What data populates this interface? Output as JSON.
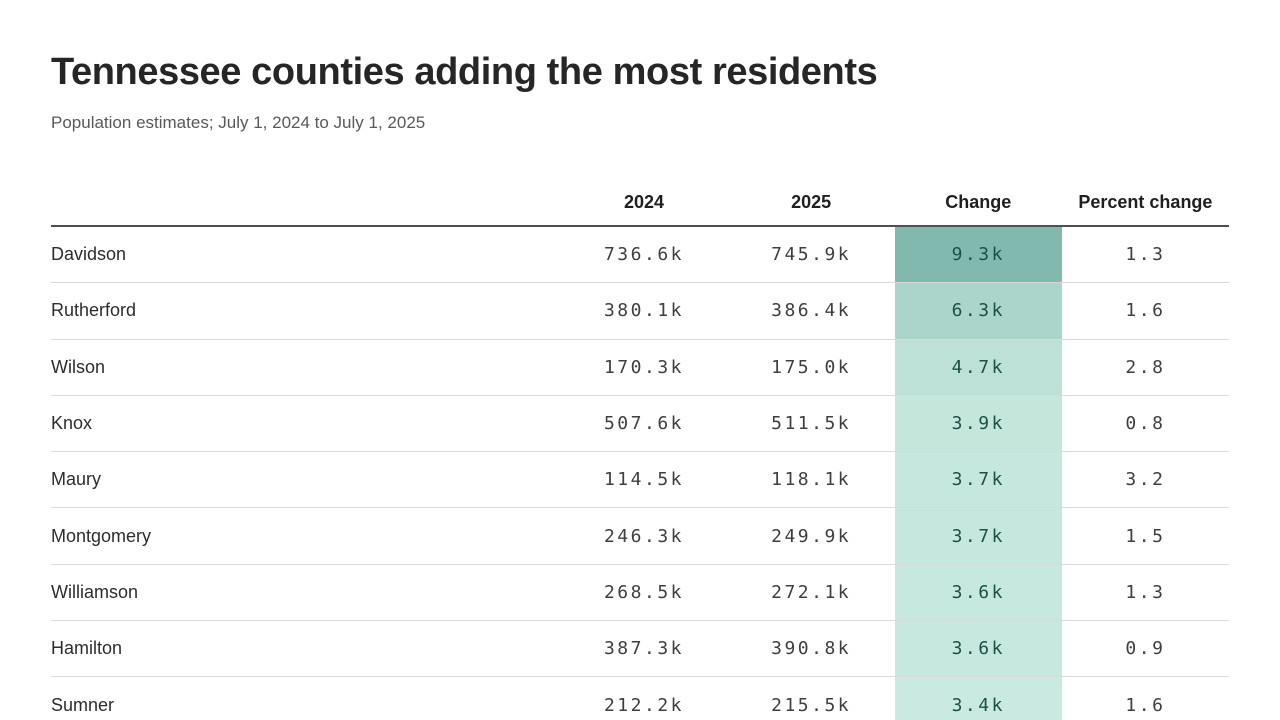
{
  "chart_data": {
    "type": "table",
    "title": "Tennessee counties adding the most residents",
    "subtitle": "Population estimates; July 1, 2024 to July 1, 2025",
    "columns": [
      "",
      "2024",
      "2025",
      "Change",
      "Percent change"
    ],
    "rows": [
      {
        "county": "Davidson",
        "y2024": "736.6k",
        "y2025": "745.9k",
        "change": "9.3k",
        "percent_change": "1.3",
        "change_color": "#82b9ae"
      },
      {
        "county": "Rutherford",
        "y2024": "380.1k",
        "y2025": "386.4k",
        "change": "6.3k",
        "percent_change": "1.6",
        "change_color": "#abd5ca"
      },
      {
        "county": "Wilson",
        "y2024": "170.3k",
        "y2025": "175.0k",
        "change": "4.7k",
        "percent_change": "2.8",
        "change_color": "#bee1d7"
      },
      {
        "county": "Knox",
        "y2024": "507.6k",
        "y2025": "511.5k",
        "change": "3.9k",
        "percent_change": "0.8",
        "change_color": "#c4e6db"
      },
      {
        "county": "Maury",
        "y2024": "114.5k",
        "y2025": "118.1k",
        "change": "3.7k",
        "percent_change": "3.2",
        "change_color": "#c6e7dd"
      },
      {
        "county": "Montgomery",
        "y2024": "246.3k",
        "y2025": "249.9k",
        "change": "3.7k",
        "percent_change": "1.5",
        "change_color": "#c6e7dd"
      },
      {
        "county": "Williamson",
        "y2024": "268.5k",
        "y2025": "272.1k",
        "change": "3.6k",
        "percent_change": "1.3",
        "change_color": "#c7e8de"
      },
      {
        "county": "Hamilton",
        "y2024": "387.3k",
        "y2025": "390.8k",
        "change": "3.6k",
        "percent_change": "0.9",
        "change_color": "#c7e8de"
      },
      {
        "county": "Sumner",
        "y2024": "212.2k",
        "y2025": "215.5k",
        "change": "3.4k",
        "percent_change": "1.6",
        "change_color": "#cae9e0"
      }
    ],
    "overflow_row_change_color": "#cfece3",
    "layout": {
      "change_text_color": "#1d5148",
      "grid": "horizontal-rules",
      "numeric_alignment": "center"
    }
  }
}
